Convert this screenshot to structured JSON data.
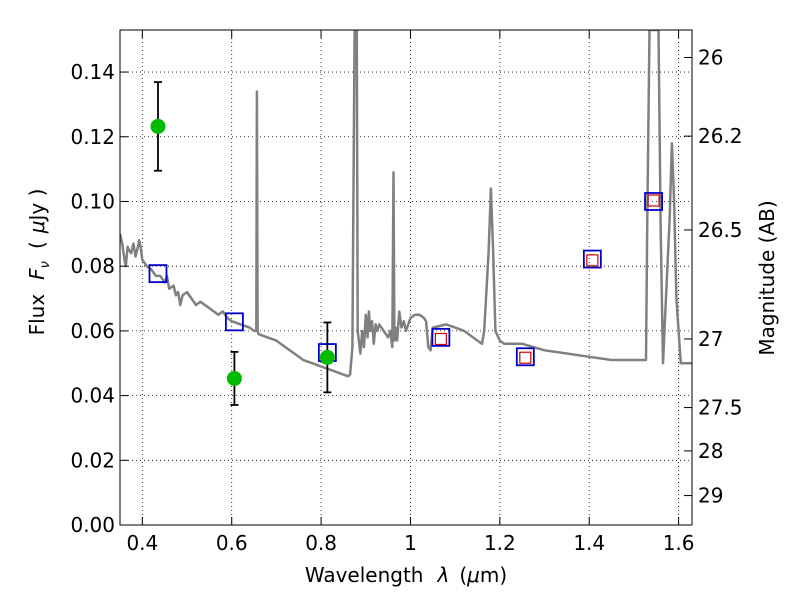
{
  "chart_data": {
    "type": "scatter",
    "xlabel_text": "Wavelength",
    "xlabel_symbol": "λ",
    "xlabel_unit_open": "(",
    "xlabel_unit_mu": "μ",
    "xlabel_unit_rest": "m)",
    "ylabel_text": "Flux",
    "ylabel_symbol": "F",
    "ylabel_symbol_sub": "ν",
    "ylabel_unit_open": "(",
    "ylabel_unit_mu": "μ",
    "ylabel_unit_rest": "Jy )",
    "y2label": "Magnitude (AB)",
    "xlim": [
      0.35,
      1.63
    ],
    "ylim": [
      0.0,
      0.153
    ],
    "grid": true,
    "x_ticks": [
      {
        "value": 0.4,
        "label": "0.4"
      },
      {
        "value": 0.6,
        "label": "0.6"
      },
      {
        "value": 0.8,
        "label": "0.8"
      },
      {
        "value": 1.0,
        "label": "1"
      },
      {
        "value": 1.2,
        "label": "1.2"
      },
      {
        "value": 1.4,
        "label": "1.4"
      },
      {
        "value": 1.6,
        "label": "1.6"
      }
    ],
    "y_ticks": [
      {
        "value": 0.0,
        "label": "0.00"
      },
      {
        "value": 0.02,
        "label": "0.02"
      },
      {
        "value": 0.04,
        "label": "0.04"
      },
      {
        "value": 0.06,
        "label": "0.06"
      },
      {
        "value": 0.08,
        "label": "0.08"
      },
      {
        "value": 0.1,
        "label": "0.10"
      },
      {
        "value": 0.12,
        "label": "0.12"
      },
      {
        "value": 0.14,
        "label": "0.14"
      }
    ],
    "y2_ticks": [
      {
        "flux": 0.1445,
        "label": "26"
      },
      {
        "flux": 0.1202,
        "label": "26.2"
      },
      {
        "flux": 0.0912,
        "label": "26.5"
      },
      {
        "flux": 0.0575,
        "label": "27"
      },
      {
        "flux": 0.0363,
        "label": "27.5"
      },
      {
        "flux": 0.0229,
        "label": "28"
      },
      {
        "flux": 0.0091,
        "label": "29"
      }
    ],
    "series": [
      {
        "kind": "sed_model",
        "color": "#808080",
        "points": [
          [
            0.35,
            0.09
          ],
          [
            0.355,
            0.087
          ],
          [
            0.36,
            0.082
          ],
          [
            0.363,
            0.08
          ],
          [
            0.367,
            0.086
          ],
          [
            0.37,
            0.085
          ],
          [
            0.375,
            0.084
          ],
          [
            0.38,
            0.087
          ],
          [
            0.385,
            0.083
          ],
          [
            0.39,
            0.086
          ],
          [
            0.393,
            0.088
          ],
          [
            0.396,
            0.086
          ],
          [
            0.4,
            0.082
          ],
          [
            0.41,
            0.08
          ],
          [
            0.42,
            0.079
          ],
          [
            0.43,
            0.077
          ],
          [
            0.44,
            0.077
          ],
          [
            0.45,
            0.075
          ],
          [
            0.455,
            0.077
          ],
          [
            0.46,
            0.073
          ],
          [
            0.47,
            0.074
          ],
          [
            0.475,
            0.071
          ],
          [
            0.48,
            0.072
          ],
          [
            0.485,
            0.068
          ],
          [
            0.49,
            0.071
          ],
          [
            0.5,
            0.072
          ],
          [
            0.51,
            0.07
          ],
          [
            0.52,
            0.068
          ],
          [
            0.53,
            0.069
          ],
          [
            0.54,
            0.068
          ],
          [
            0.55,
            0.067
          ],
          [
            0.56,
            0.066
          ],
          [
            0.57,
            0.065
          ],
          [
            0.58,
            0.066
          ],
          [
            0.59,
            0.064
          ],
          [
            0.6,
            0.063
          ],
          [
            0.62,
            0.062
          ],
          [
            0.64,
            0.061
          ],
          [
            0.65,
            0.06
          ],
          [
            0.655,
            0.06
          ],
          [
            0.6563,
            0.134
          ],
          [
            0.658,
            0.06
          ],
          [
            0.66,
            0.059
          ],
          [
            0.68,
            0.058
          ],
          [
            0.7,
            0.057
          ],
          [
            0.72,
            0.055
          ],
          [
            0.74,
            0.053
          ],
          [
            0.76,
            0.051
          ],
          [
            0.78,
            0.05
          ],
          [
            0.8,
            0.049
          ],
          [
            0.82,
            0.048
          ],
          [
            0.84,
            0.047
          ],
          [
            0.86,
            0.046
          ],
          [
            0.865,
            0.0465
          ],
          [
            0.87,
            0.055
          ],
          [
            0.875,
            0.153
          ],
          [
            0.88,
            0.153
          ],
          [
            0.882,
            0.06
          ],
          [
            0.888,
            0.053
          ],
          [
            0.892,
            0.06
          ],
          [
            0.896,
            0.055
          ],
          [
            0.9,
            0.065
          ],
          [
            0.904,
            0.058
          ],
          [
            0.907,
            0.066
          ],
          [
            0.91,
            0.06
          ],
          [
            0.914,
            0.063
          ],
          [
            0.918,
            0.056
          ],
          [
            0.922,
            0.062
          ],
          [
            0.926,
            0.06
          ],
          [
            0.93,
            0.062
          ],
          [
            0.94,
            0.06
          ],
          [
            0.95,
            0.058
          ],
          [
            0.955,
            0.06
          ],
          [
            0.9593,
            0.055
          ],
          [
            0.962,
            0.109
          ],
          [
            0.964,
            0.057
          ],
          [
            0.967,
            0.061
          ],
          [
            0.97,
            0.057
          ],
          [
            0.975,
            0.066
          ],
          [
            0.98,
            0.061
          ],
          [
            0.985,
            0.063
          ],
          [
            0.99,
            0.06
          ],
          [
            1.0,
            0.064
          ],
          [
            1.01,
            0.065
          ],
          [
            1.02,
            0.065
          ],
          [
            1.03,
            0.064
          ],
          [
            1.035,
            0.063
          ],
          [
            1.04,
            0.055
          ],
          [
            1.045,
            0.054
          ],
          [
            1.05,
            0.061
          ],
          [
            1.08,
            0.062
          ],
          [
            1.1,
            0.061
          ],
          [
            1.12,
            0.06
          ],
          [
            1.15,
            0.057
          ],
          [
            1.16,
            0.056
          ],
          [
            1.165,
            0.06
          ],
          [
            1.175,
            0.085
          ],
          [
            1.18,
            0.104
          ],
          [
            1.185,
            0.085
          ],
          [
            1.19,
            0.06
          ],
          [
            1.2,
            0.057
          ],
          [
            1.21,
            0.056
          ],
          [
            1.25,
            0.056
          ],
          [
            1.3,
            0.054
          ],
          [
            1.35,
            0.053
          ],
          [
            1.4,
            0.052
          ],
          [
            1.45,
            0.051
          ],
          [
            1.5,
            0.051
          ],
          [
            1.527,
            0.051
          ],
          [
            1.53,
            0.095
          ],
          [
            1.535,
            0.153
          ],
          [
            1.555,
            0.153
          ],
          [
            1.56,
            0.091
          ],
          [
            1.565,
            0.05
          ],
          [
            1.57,
            0.065
          ],
          [
            1.58,
            0.095
          ],
          [
            1.585,
            0.118
          ],
          [
            1.59,
            0.1
          ],
          [
            1.595,
            0.07
          ],
          [
            1.6,
            0.06
          ],
          [
            1.605,
            0.05
          ],
          [
            1.61,
            0.05
          ],
          [
            1.62,
            0.05
          ],
          [
            1.63,
            0.05
          ]
        ]
      },
      {
        "kind": "model_photometry",
        "marker": "open-square",
        "color": "#0000cc",
        "points": [
          [
            0.435,
            0.0777
          ],
          [
            0.606,
            0.0628
          ],
          [
            0.814,
            0.0533
          ],
          [
            1.068,
            0.058
          ],
          [
            1.257,
            0.052
          ],
          [
            1.407,
            0.0822
          ],
          [
            1.544,
            0.1
          ]
        ]
      },
      {
        "kind": "observed_photometry",
        "marker": "open-square",
        "color": "#cc0000",
        "points": [
          [
            1.068,
            0.0575
          ],
          [
            1.257,
            0.0517
          ],
          [
            1.407,
            0.0818
          ],
          [
            1.544,
            0.1003
          ]
        ]
      },
      {
        "kind": "observed_detections",
        "marker": "filled-circle",
        "color": "#00bb00",
        "points": [
          {
            "x": 0.435,
            "y": 0.1232,
            "err": 0.0137
          },
          {
            "x": 0.606,
            "y": 0.0453,
            "err": 0.0082
          },
          {
            "x": 0.814,
            "y": 0.0518,
            "err": 0.0108
          }
        ]
      }
    ]
  }
}
